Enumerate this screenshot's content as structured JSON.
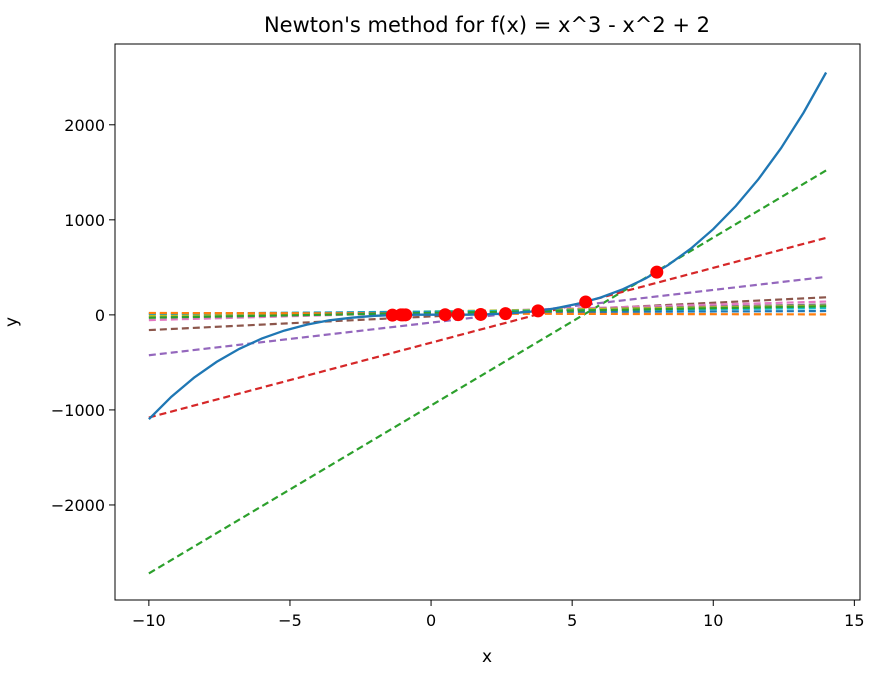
{
  "chart_data": {
    "type": "line",
    "title": "Newton's method for f(x) = x^3 - x^2 + 2",
    "xlabel": "x",
    "ylabel": "y",
    "xlim": [
      -11.2,
      15.2
    ],
    "ylim": [
      -3000,
      2850
    ],
    "xticks": [
      {
        "value": -10,
        "label": "−10"
      },
      {
        "value": -5,
        "label": "−5"
      },
      {
        "value": 0,
        "label": "0"
      },
      {
        "value": 5,
        "label": "5"
      },
      {
        "value": 10,
        "label": "10"
      },
      {
        "value": 15,
        "label": "15"
      }
    ],
    "yticks": [
      {
        "value": -2000,
        "label": "−2000"
      },
      {
        "value": -1000,
        "label": "−1000"
      },
      {
        "value": 0,
        "label": "0"
      },
      {
        "value": 1000,
        "label": "1000"
      },
      {
        "value": 2000,
        "label": "2000"
      }
    ],
    "grid": false,
    "function": {
      "color": "#1f77b4",
      "x": [
        -10,
        -9.2,
        -8.4,
        -7.6,
        -6.8,
        -6,
        -5.2,
        -4.4,
        -3.6,
        -2.8,
        -2,
        -1.2,
        -0.4,
        0.4,
        1.2,
        2,
        2.8,
        3.6,
        4.4,
        5.2,
        6,
        6.8,
        7.6,
        8.4,
        9.2,
        10,
        10.8,
        11.6,
        12.4,
        13.2,
        14
      ],
      "y": [
        -1098,
        -861,
        -661,
        -495,
        -358,
        -250,
        -166,
        -102,
        -57,
        -30,
        -10,
        -1.2,
        1.8,
        1.9,
        2.3,
        6,
        16,
        36,
        68,
        116,
        182,
        270,
        383,
        524,
        696,
        902,
        1145,
        1428,
        1754,
        2128,
        2550
      ]
    },
    "iterates": {
      "color": "#ff0000",
      "points": [
        {
          "x": 8.0,
          "y": 450
        },
        {
          "x": 5.48,
          "y": 136
        },
        {
          "x": 3.79,
          "y": 42
        },
        {
          "x": 2.64,
          "y": 13
        },
        {
          "x": 1.76,
          "y": 4.4
        },
        {
          "x": 0.96,
          "y": 2.0
        },
        {
          "x": 0.5,
          "y": 1.9
        },
        {
          "x": -1.37,
          "y": -2.4
        },
        {
          "x": -1.07,
          "y": 0.6
        },
        {
          "x": -1.0,
          "y": 0.0
        },
        {
          "x": -0.9,
          "y": 0.5
        }
      ]
    },
    "tangents": [
      {
        "color": "#2ca02c",
        "y_at_xmin": -2720,
        "y_at_xmax": 1520
      },
      {
        "color": "#d62728",
        "y_at_xmin": -1080,
        "y_at_xmax": 810
      },
      {
        "color": "#9467bd",
        "y_at_xmin": -425,
        "y_at_xmax": 400
      },
      {
        "color": "#8c564b",
        "y_at_xmin": -160,
        "y_at_xmax": 185
      },
      {
        "color": "#e377c2",
        "y_at_xmin": -55,
        "y_at_xmax": 140
      },
      {
        "color": "#7f7f7f",
        "y_at_xmin": -25,
        "y_at_xmax": 110
      },
      {
        "color": "#bcbd22",
        "y_at_xmin": -5,
        "y_at_xmax": 95
      },
      {
        "color": "#17becf",
        "y_at_xmin": 10,
        "y_at_xmax": 70
      },
      {
        "color": "#1f77b4",
        "y_at_xmin": 15,
        "y_at_xmax": 40
      },
      {
        "color": "#ff7f0e",
        "y_at_xmin": 20,
        "y_at_xmax": 5
      },
      {
        "color": "#2ca02c",
        "y_at_xmin": -30,
        "y_at_xmax": 90
      }
    ]
  }
}
